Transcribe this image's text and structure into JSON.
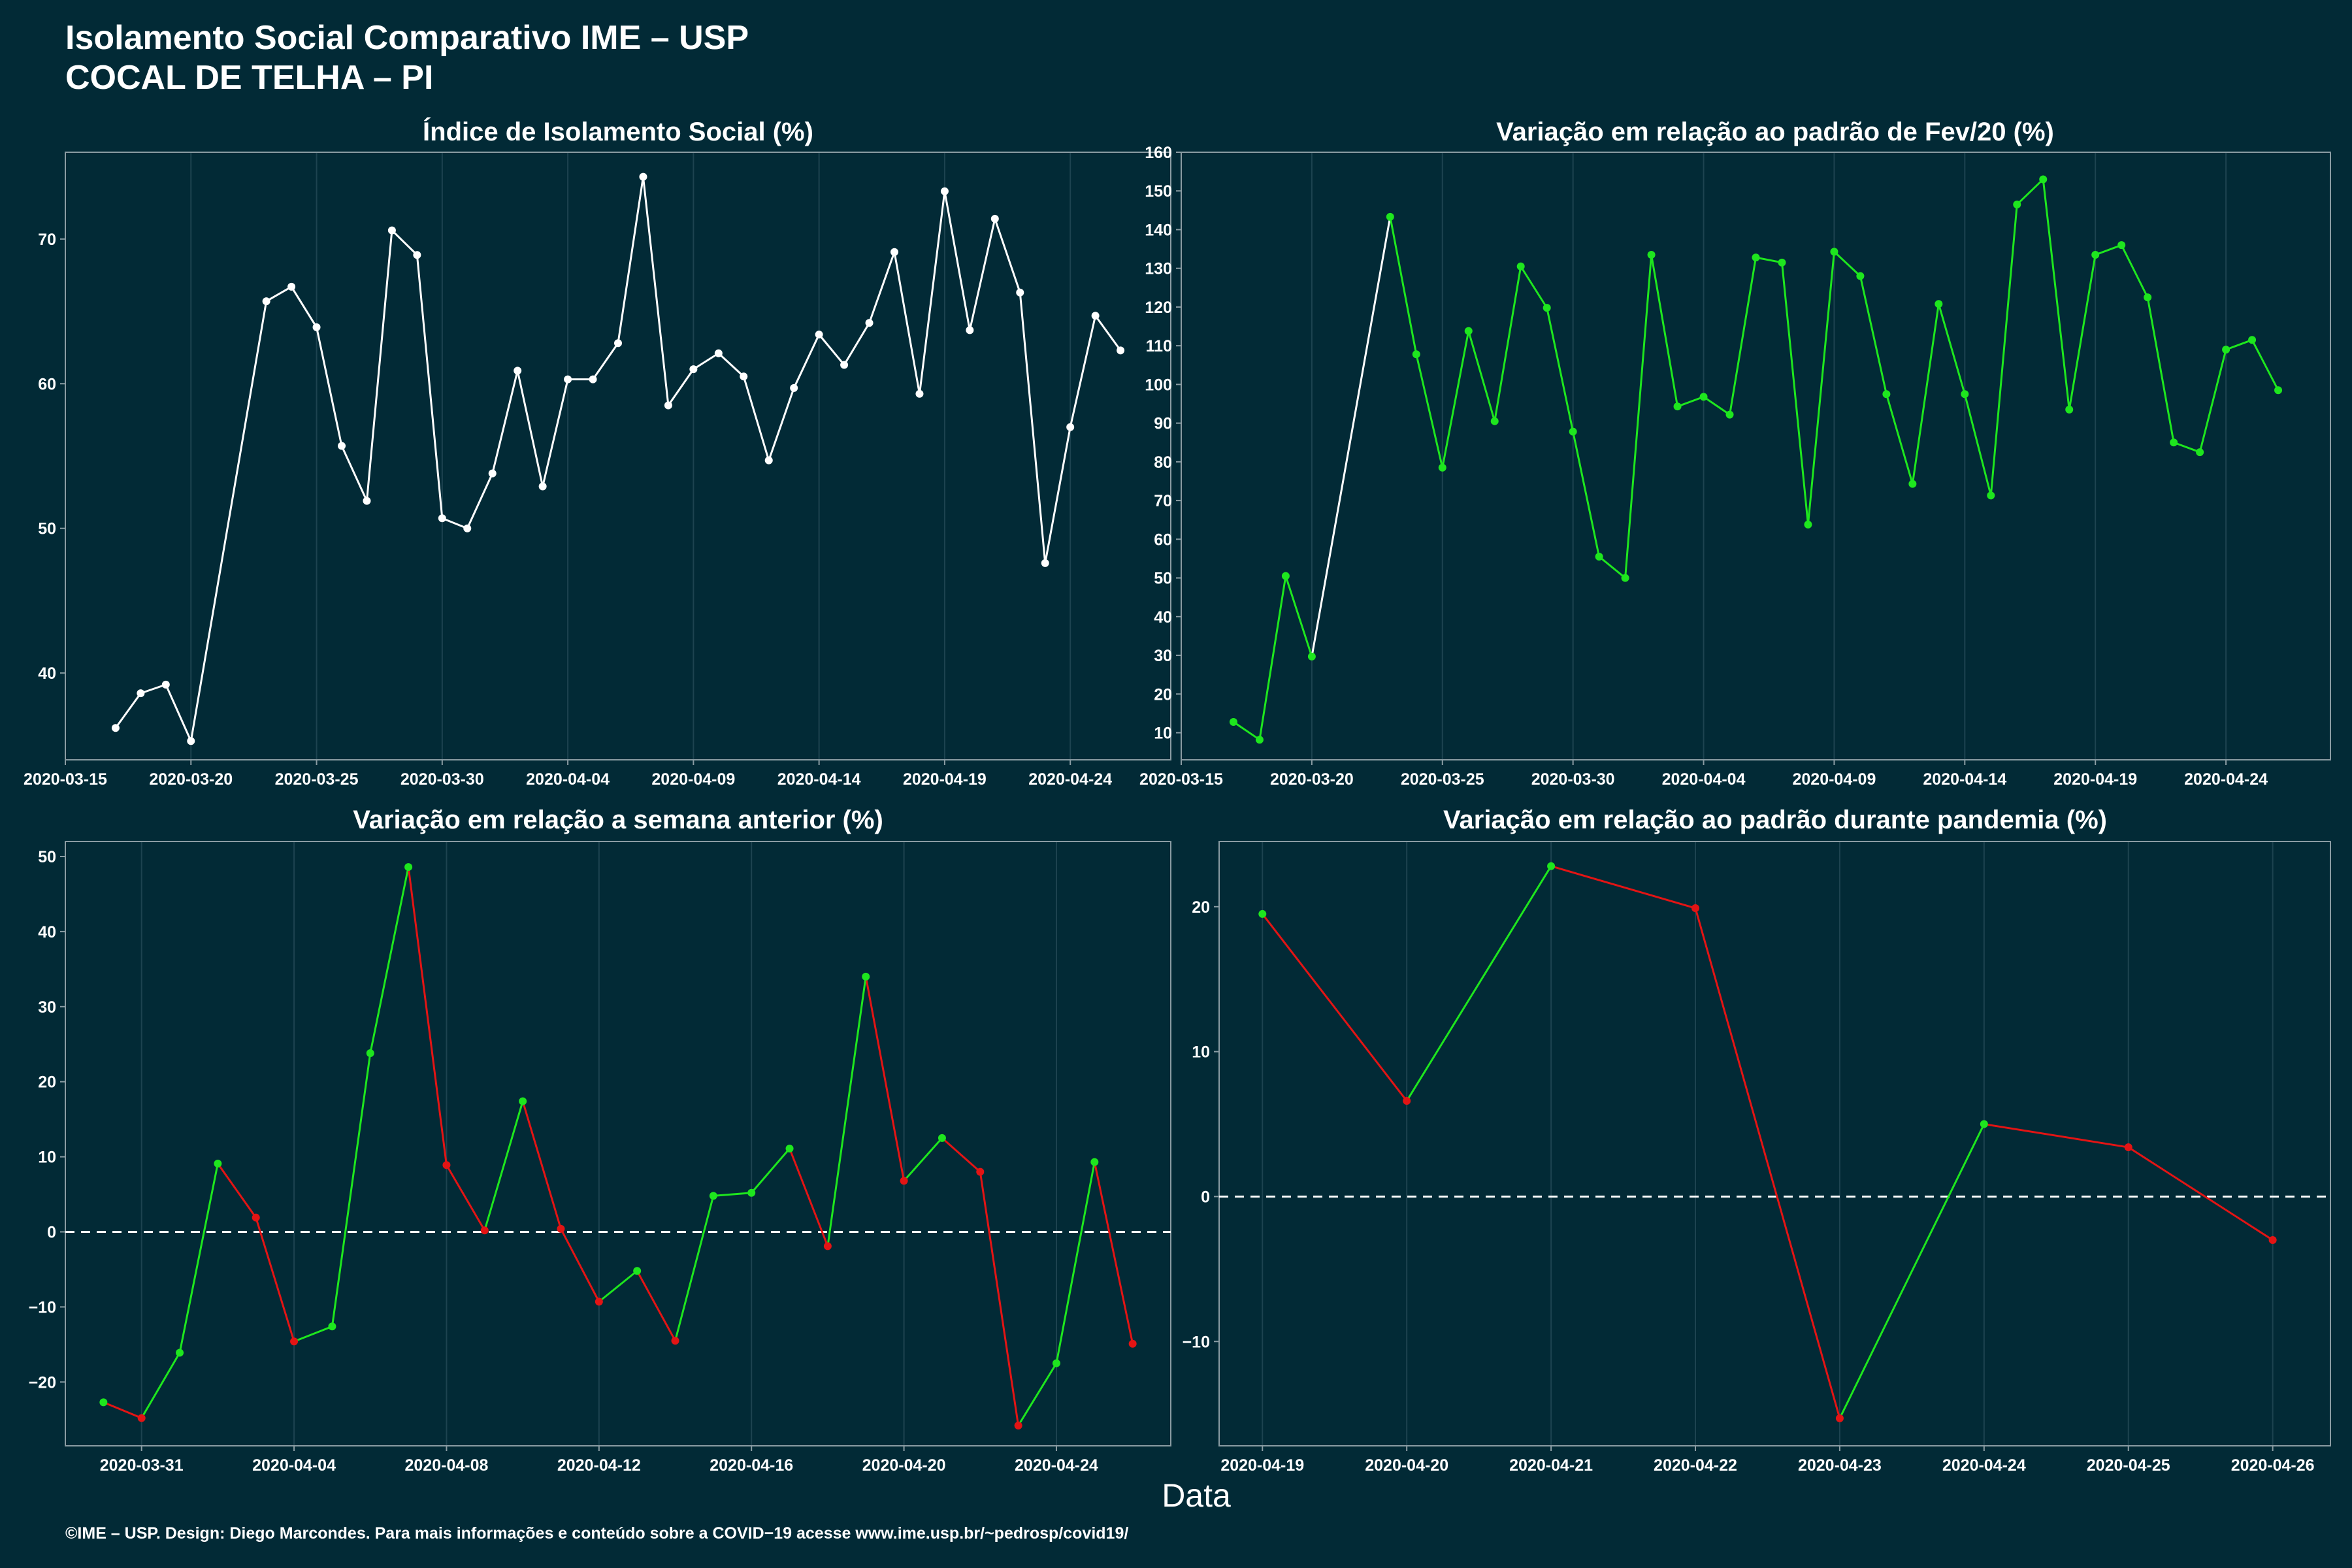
{
  "header": {
    "title_line1": "Isolamento Social Comparativo IME – USP",
    "title_line2": "COCAL DE TELHA – PI"
  },
  "xlabel": "Data",
  "footer": "©IME – USP. Design: Diego Marcondes. Para mais informações e conteúdo sobre a COVID−19 acesse www.ime.usp.br/~pedrosp/covid19/",
  "colors": {
    "background": "#022a36",
    "grid": "#1d4350",
    "white_series": "#ffffff",
    "positive": "#1ee61e",
    "negative": "#e31414",
    "axis": "#8a9ca3"
  },
  "chart_data": [
    {
      "type": "line",
      "title": "Índice de Isolamento Social (%)",
      "ylim": [
        34,
        76
      ],
      "yticks": [
        40,
        50,
        60,
        70
      ],
      "xlim": [
        "2020-03-15",
        "2020-04-28"
      ],
      "xticks": [
        "2020-03-15",
        "2020-03-20",
        "2020-03-25",
        "2020-03-30",
        "2020-04-04",
        "2020-04-09",
        "2020-04-14",
        "2020-04-19",
        "2020-04-24"
      ],
      "color_mode": "white",
      "series": [
        {
          "x": [
            "2020-03-17",
            "2020-03-18",
            "2020-03-19",
            "2020-03-20",
            "2020-03-23",
            "2020-03-24",
            "2020-03-25",
            "2020-03-26",
            "2020-03-27",
            "2020-03-28",
            "2020-03-29",
            "2020-03-30",
            "2020-03-31",
            "2020-04-01",
            "2020-04-02",
            "2020-04-03",
            "2020-04-04",
            "2020-04-05",
            "2020-04-06",
            "2020-04-07",
            "2020-04-08",
            "2020-04-09",
            "2020-04-10",
            "2020-04-11",
            "2020-04-12",
            "2020-04-13",
            "2020-04-14",
            "2020-04-15",
            "2020-04-16",
            "2020-04-17",
            "2020-04-18",
            "2020-04-19",
            "2020-04-20",
            "2020-04-21",
            "2020-04-22",
            "2020-04-23",
            "2020-04-24",
            "2020-04-25",
            "2020-04-26"
          ],
          "values": [
            36.2,
            38.6,
            39.2,
            35.3,
            65.7,
            66.7,
            63.9,
            55.7,
            51.9,
            70.6,
            68.9,
            50.7,
            50.0,
            53.8,
            60.9,
            52.9,
            60.3,
            60.3,
            62.8,
            74.3,
            58.5,
            61.0,
            62.1,
            60.5,
            54.7,
            59.7,
            63.4,
            61.3,
            64.2,
            69.1,
            59.3,
            73.3,
            63.7,
            71.4,
            66.3,
            47.6,
            57.0,
            64.7,
            62.3
          ]
        }
      ]
    },
    {
      "type": "line",
      "title": "Variação em relação ao padrão de Fev/20 (%)",
      "ylim": [
        3,
        160
      ],
      "yticks": [
        10,
        20,
        30,
        40,
        50,
        60,
        70,
        80,
        90,
        100,
        110,
        120,
        130,
        140,
        150,
        160
      ],
      "xlim": [
        "2020-03-15",
        "2020-04-28"
      ],
      "xticks": [
        "2020-03-15",
        "2020-03-20",
        "2020-03-25",
        "2020-03-30",
        "2020-04-04",
        "2020-04-09",
        "2020-04-14",
        "2020-04-19",
        "2020-04-24"
      ],
      "color_mode": "green",
      "series": [
        {
          "x": [
            "2020-03-17",
            "2020-03-18",
            "2020-03-19",
            "2020-03-20",
            "2020-03-23",
            "2020-03-24",
            "2020-03-25",
            "2020-03-26",
            "2020-03-27",
            "2020-03-28",
            "2020-03-29",
            "2020-03-30",
            "2020-03-31",
            "2020-04-01",
            "2020-04-02",
            "2020-04-03",
            "2020-04-04",
            "2020-04-05",
            "2020-04-06",
            "2020-04-07",
            "2020-04-08",
            "2020-04-09",
            "2020-04-10",
            "2020-04-11",
            "2020-04-12",
            "2020-04-13",
            "2020-04-14",
            "2020-04-15",
            "2020-04-16",
            "2020-04-17",
            "2020-04-18",
            "2020-04-19",
            "2020-04-20",
            "2020-04-21",
            "2020-04-22",
            "2020-04-23",
            "2020-04-24",
            "2020-04-25",
            "2020-04-26"
          ],
          "values": [
            12.8,
            8.2,
            50.5,
            29.7,
            143.3,
            107.8,
            78.5,
            113.8,
            90.5,
            130.5,
            119.8,
            87.8,
            55.5,
            50.0,
            133.5,
            94.3,
            96.8,
            92.2,
            132.8,
            131.5,
            63.8,
            134.3,
            128.0,
            97.5,
            74.3,
            120.8,
            97.5,
            71.3,
            146.5,
            153.0,
            93.5,
            133.5,
            136.0,
            122.5,
            85.0,
            82.5,
            109.0,
            111.5,
            98.5
          ]
        }
      ]
    },
    {
      "type": "line",
      "title": "Variação em relação a semana anterior (%)",
      "ylim": [
        -28.5,
        52
      ],
      "yticks": [
        -20,
        -10,
        0,
        10,
        20,
        30,
        40,
        50
      ],
      "xlim": [
        "2020-03-29",
        "2020-04-27"
      ],
      "xticks": [
        "2020-03-31",
        "2020-04-04",
        "2020-04-08",
        "2020-04-12",
        "2020-04-16",
        "2020-04-20",
        "2020-04-24"
      ],
      "color_mode": "diff",
      "zero_line": true,
      "series": [
        {
          "x": [
            "2020-03-30",
            "2020-03-31",
            "2020-04-01",
            "2020-04-02",
            "2020-04-03",
            "2020-04-04",
            "2020-04-05",
            "2020-04-06",
            "2020-04-07",
            "2020-04-08",
            "2020-04-09",
            "2020-04-10",
            "2020-04-11",
            "2020-04-12",
            "2020-04-13",
            "2020-04-14",
            "2020-04-15",
            "2020-04-16",
            "2020-04-17",
            "2020-04-18",
            "2020-04-19",
            "2020-04-20",
            "2020-04-21",
            "2020-04-22",
            "2020-04-23",
            "2020-04-24",
            "2020-04-25",
            "2020-04-26"
          ],
          "values": [
            -22.7,
            -24.8,
            -16.1,
            9.1,
            1.9,
            -14.6,
            -12.6,
            23.8,
            48.6,
            8.9,
            0.2,
            17.4,
            0.4,
            -9.3,
            -5.2,
            -14.5,
            4.8,
            5.2,
            11.1,
            -1.9,
            34.0,
            6.8,
            12.5,
            8.0,
            -25.8,
            -17.5,
            9.3,
            -14.9
          ]
        }
      ]
    },
    {
      "type": "line",
      "title": "Variação em relação ao padrão durante pandemia (%)",
      "ylim": [
        -17.2,
        24.5
      ],
      "yticks": [
        -10,
        0,
        10,
        20
      ],
      "xlim": [
        "2020-04-18.7",
        "2020-04-26.4"
      ],
      "xticks": [
        "2020-04-19",
        "2020-04-20",
        "2020-04-21",
        "2020-04-22",
        "2020-04-23",
        "2020-04-24",
        "2020-04-25",
        "2020-04-26"
      ],
      "color_mode": "diff",
      "zero_line": true,
      "series": [
        {
          "x": [
            "2020-04-19",
            "2020-04-20",
            "2020-04-21",
            "2020-04-22",
            "2020-04-23",
            "2020-04-24",
            "2020-04-25",
            "2020-04-26"
          ],
          "values": [
            19.5,
            6.6,
            22.8,
            19.9,
            -15.3,
            5.0,
            3.4,
            -3.0
          ]
        }
      ]
    }
  ]
}
